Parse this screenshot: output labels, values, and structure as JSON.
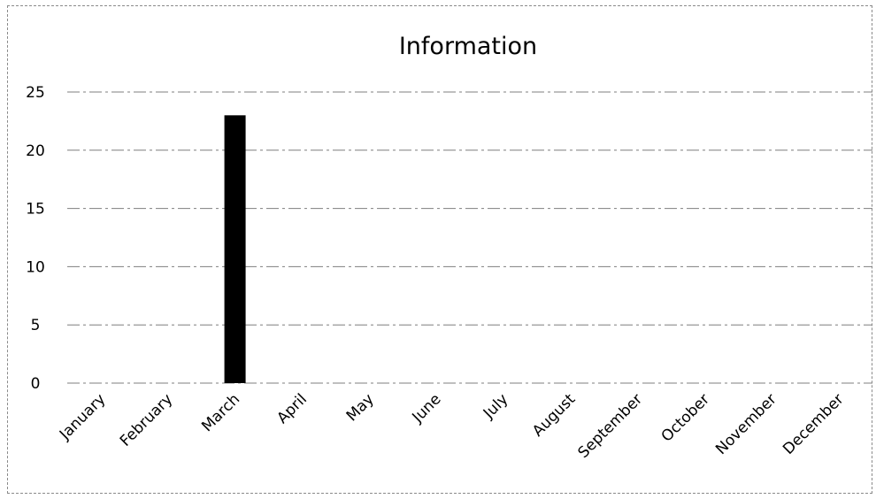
{
  "chart_data": {
    "type": "bar",
    "title": "Information",
    "xlabel": "",
    "ylabel": "",
    "categories": [
      "January",
      "February",
      "March",
      "April",
      "May",
      "June",
      "July",
      "August",
      "September",
      "October",
      "November",
      "December"
    ],
    "values": [
      0,
      0,
      23,
      0,
      0,
      0,
      0,
      0,
      0,
      0,
      0,
      0
    ],
    "ylim": [
      0,
      25
    ],
    "yticks": [
      0,
      5,
      10,
      15,
      20,
      25
    ],
    "grid": true,
    "legend": "none",
    "colors": {
      "bar": "#000000",
      "grid": "#7f7f7f",
      "text": "#000000"
    }
  }
}
